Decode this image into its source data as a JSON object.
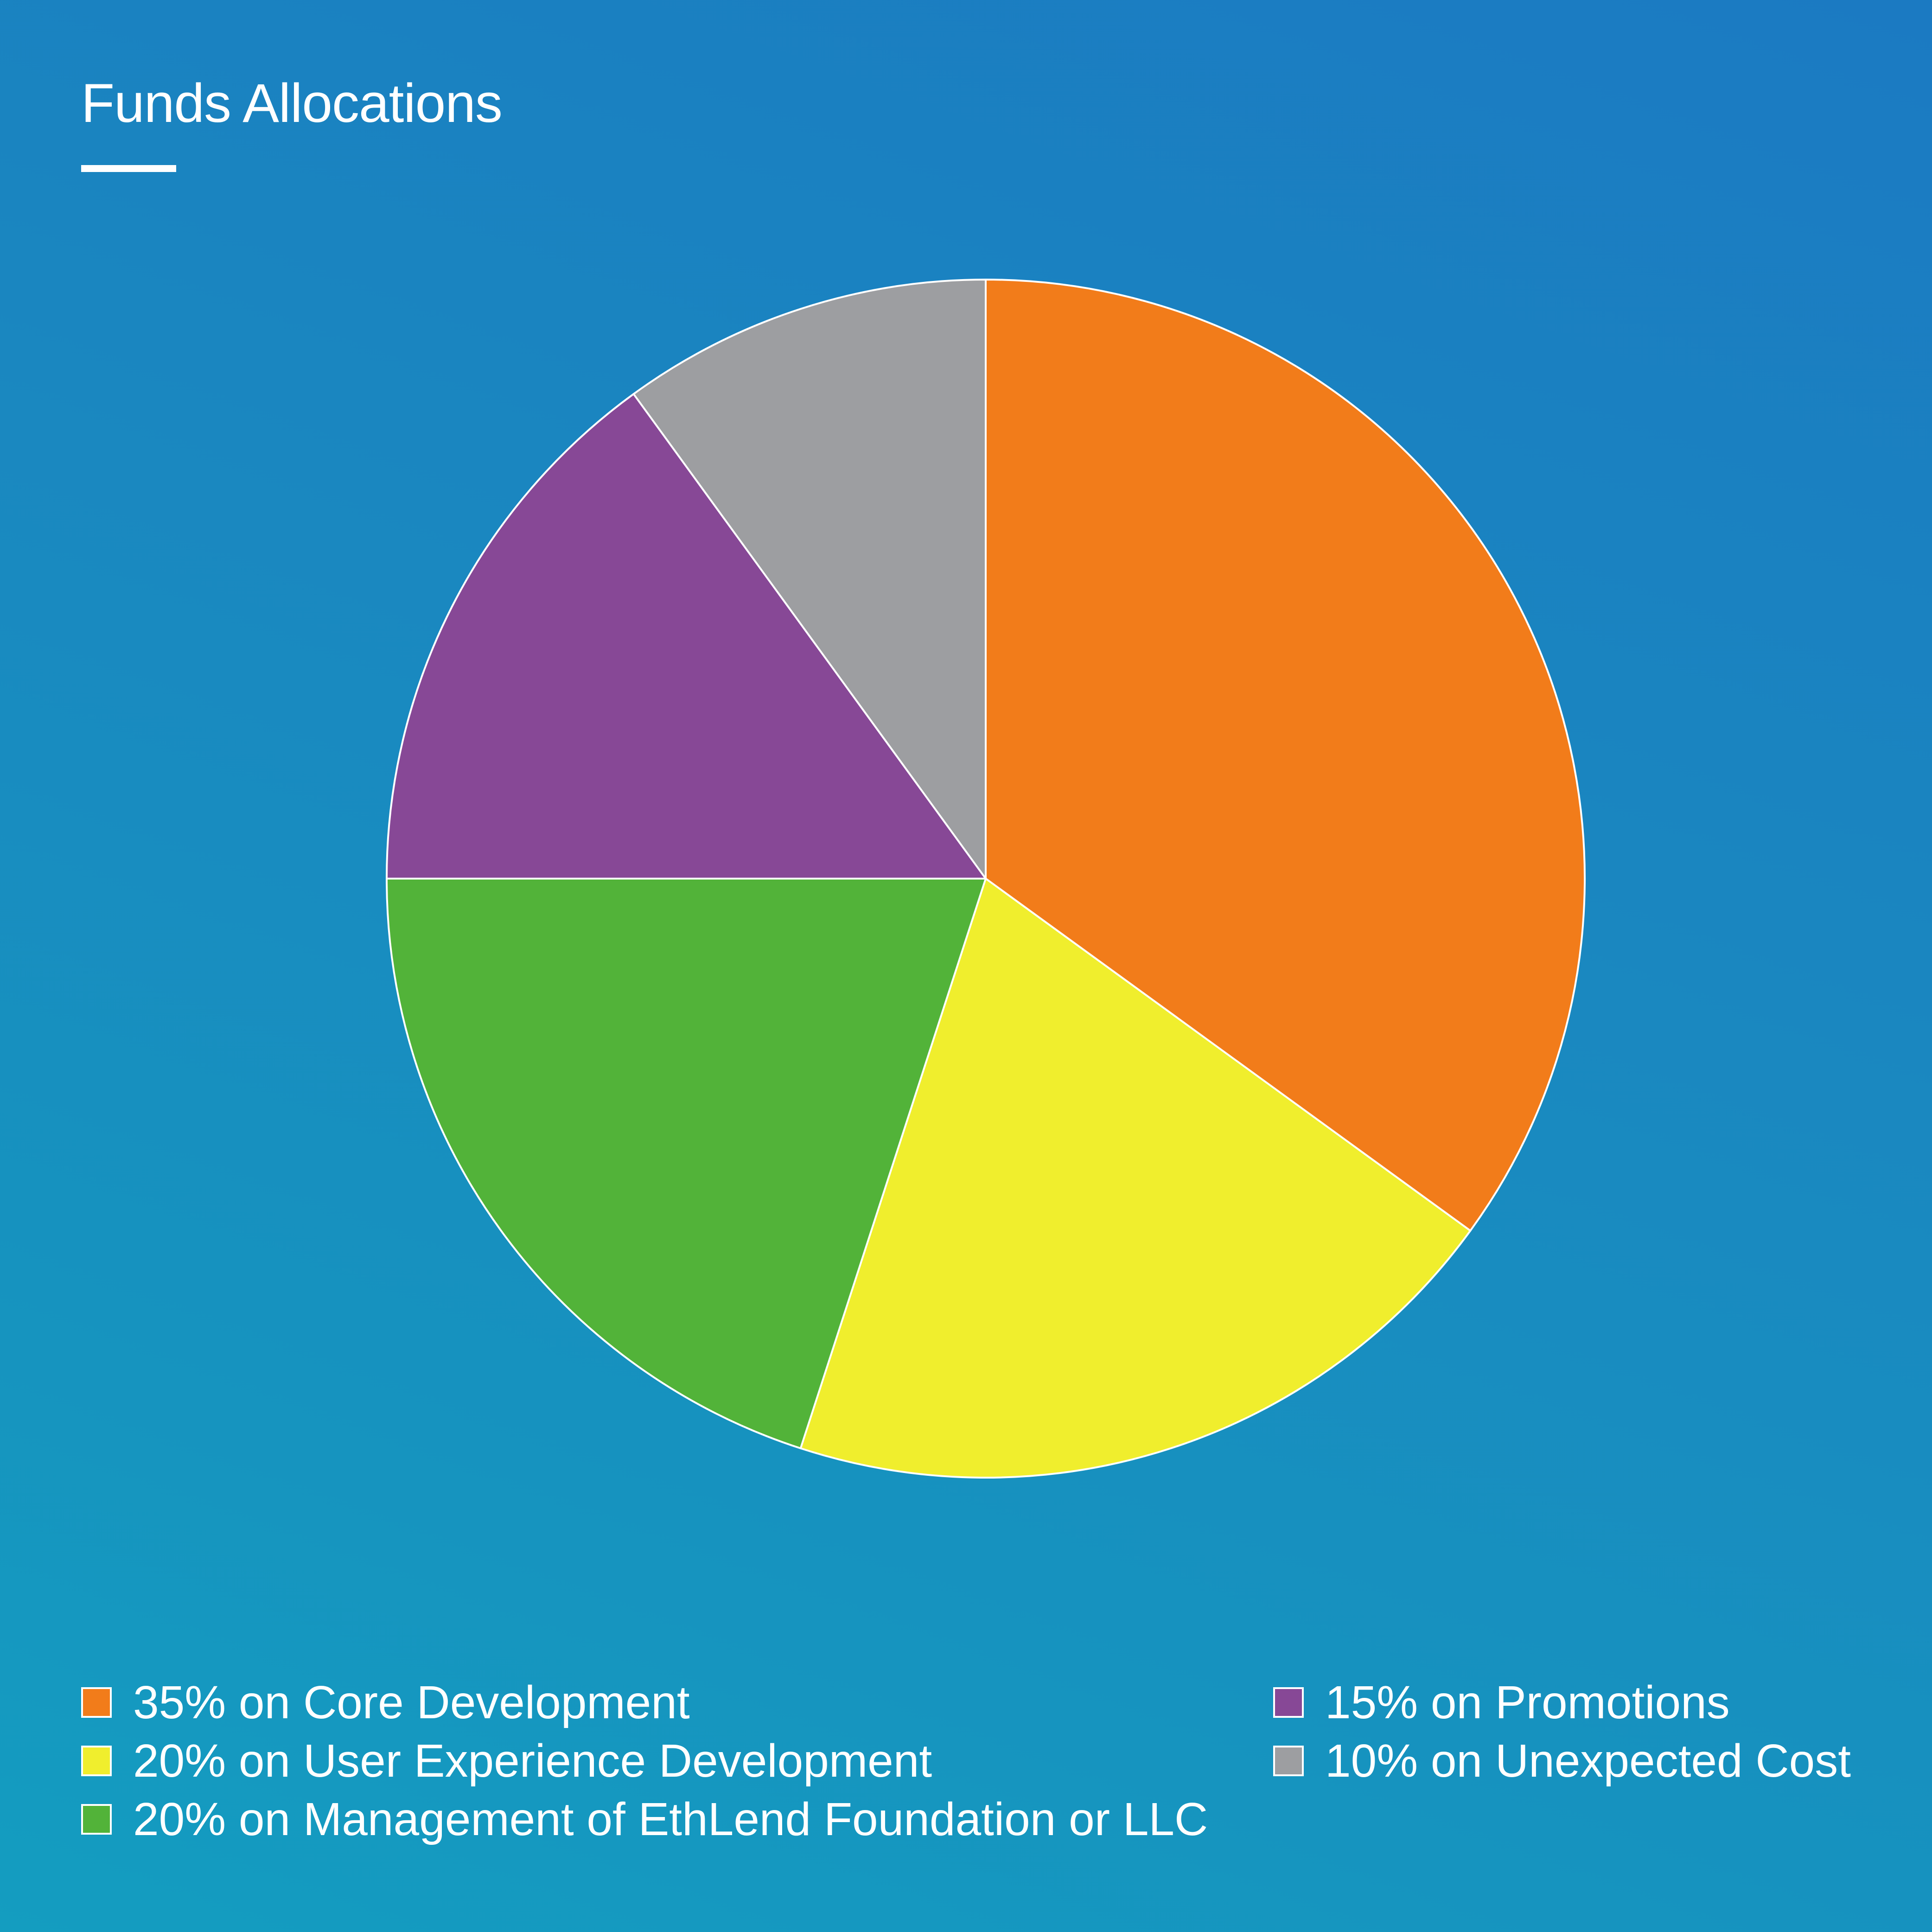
{
  "chart_data": {
    "type": "pie",
    "title": "Funds Allocations",
    "categories": [
      "Core Development",
      "User Experience Development",
      "Management of EthLend Foundation or LLC",
      "Promotions",
      "Unexpected Cost"
    ],
    "values": [
      35,
      20,
      20,
      15,
      10
    ],
    "unit": "%",
    "colors": [
      "#f27c1a",
      "#f0ee2d",
      "#52b339",
      "#874896",
      "#9d9ea1"
    ],
    "legend": [
      {
        "label": "35% on Core Development",
        "color": "#f27c1a"
      },
      {
        "label": "20% on User Experience Development",
        "color": "#f0ee2d"
      },
      {
        "label": "20% on Management of EthLend Foundation or LLC",
        "color": "#52b339"
      },
      {
        "label": "15% on Promotions",
        "color": "#874896"
      },
      {
        "label": "10% on Unexpected Cost",
        "color": "#9d9ea1"
      }
    ],
    "legend_position": "bottom",
    "start_angle_deg": 0,
    "direction": "clockwise",
    "slice_border_color": "#ffffff"
  }
}
